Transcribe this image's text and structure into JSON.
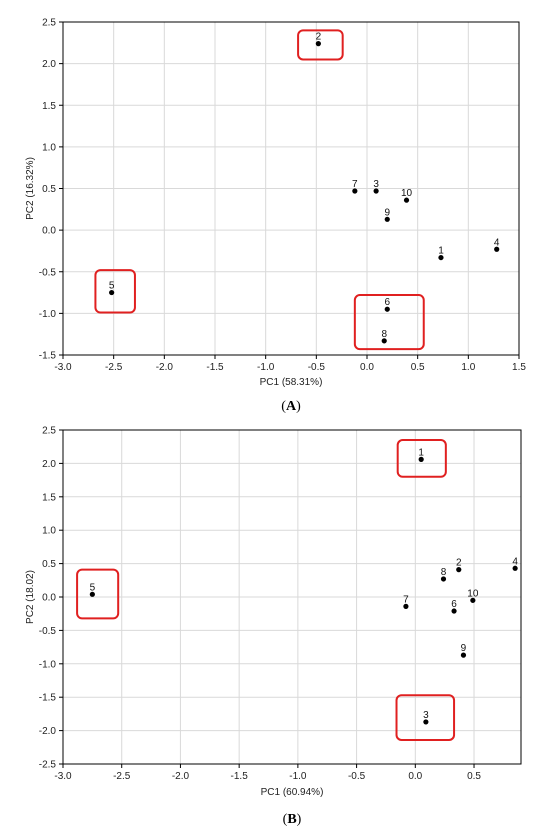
{
  "chart_data": [
    {
      "type": "scatter",
      "caption_open": "(",
      "caption_letter": "A",
      "caption_close": ")",
      "xlabel": "PC1 (58.31%)",
      "ylabel": "PC2 (16.32%)",
      "xlim": [
        -3.0,
        1.5
      ],
      "ylim": [
        -1.5,
        2.5
      ],
      "xticks": [
        "-3.0",
        "-2.5",
        "-2.0",
        "-1.5",
        "-1.0",
        "-0.5",
        "0.0",
        "0.5",
        "1.0",
        "1.5"
      ],
      "yticks": [
        "2.5",
        "2.0",
        "1.5",
        "1.0",
        "0.5",
        "0.0",
        "-0.5",
        "-1.0",
        "-1.5"
      ],
      "grid": true,
      "points": [
        {
          "label": "1",
          "x": 0.73,
          "y": -0.33
        },
        {
          "label": "2",
          "x": -0.48,
          "y": 2.24
        },
        {
          "label": "3",
          "x": 0.09,
          "y": 0.47
        },
        {
          "label": "4",
          "x": 1.28,
          "y": -0.23
        },
        {
          "label": "5",
          "x": -2.52,
          "y": -0.75
        },
        {
          "label": "6",
          "x": 0.2,
          "y": -0.95
        },
        {
          "label": "7",
          "x": -0.12,
          "y": 0.47
        },
        {
          "label": "8",
          "x": 0.17,
          "y": -1.33
        },
        {
          "label": "9",
          "x": 0.2,
          "y": 0.13
        },
        {
          "label": "10",
          "x": 0.39,
          "y": 0.36
        }
      ],
      "highlight_boxes": [
        {
          "x0": -0.68,
          "x1": -0.24,
          "y0": 2.05,
          "y1": 2.4
        },
        {
          "x0": -2.68,
          "x1": -2.29,
          "y0": -0.99,
          "y1": -0.48
        },
        {
          "x0": -0.12,
          "x1": 0.56,
          "y0": -1.43,
          "y1": -0.78
        }
      ],
      "highlight_color": "#e02020"
    },
    {
      "type": "scatter",
      "caption_open": "(",
      "caption_letter": "B",
      "caption_close": ")",
      "xlabel": "PC1 (60.94%)",
      "ylabel": "PC2 (18.02)",
      "xlim": [
        -3.0,
        0.9
      ],
      "ylim": [
        -2.5,
        2.5
      ],
      "xticks": [
        "-3.0",
        "-2.5",
        "-2.0",
        "-1.5",
        "-1.0",
        "-0.5",
        "0.0",
        "0.5"
      ],
      "yticks": [
        "2.5",
        "2.0",
        "1.5",
        "1.0",
        "0.5",
        "0.0",
        "-0.5",
        "-1.0",
        "-1.5",
        "-2.0",
        "-2.5"
      ],
      "grid": true,
      "points": [
        {
          "label": "1",
          "x": 0.05,
          "y": 2.06
        },
        {
          "label": "2",
          "x": 0.37,
          "y": 0.41
        },
        {
          "label": "3",
          "x": 0.09,
          "y": -1.87
        },
        {
          "label": "4",
          "x": 0.85,
          "y": 0.43
        },
        {
          "label": "5",
          "x": -2.75,
          "y": 0.04
        },
        {
          "label": "6",
          "x": 0.33,
          "y": -0.21
        },
        {
          "label": "7",
          "x": -0.08,
          "y": -0.14
        },
        {
          "label": "8",
          "x": 0.24,
          "y": 0.27
        },
        {
          "label": "9",
          "x": 0.41,
          "y": -0.87
        },
        {
          "label": "10",
          "x": 0.49,
          "y": -0.05
        }
      ],
      "highlight_boxes": [
        {
          "x0": -0.15,
          "x1": 0.26,
          "y0": 1.8,
          "y1": 2.35
        },
        {
          "x0": -2.88,
          "x1": -2.53,
          "y0": -0.32,
          "y1": 0.41
        },
        {
          "x0": -0.16,
          "x1": 0.33,
          "y0": -2.14,
          "y1": -1.47
        }
      ],
      "highlight_color": "#e02020"
    }
  ]
}
